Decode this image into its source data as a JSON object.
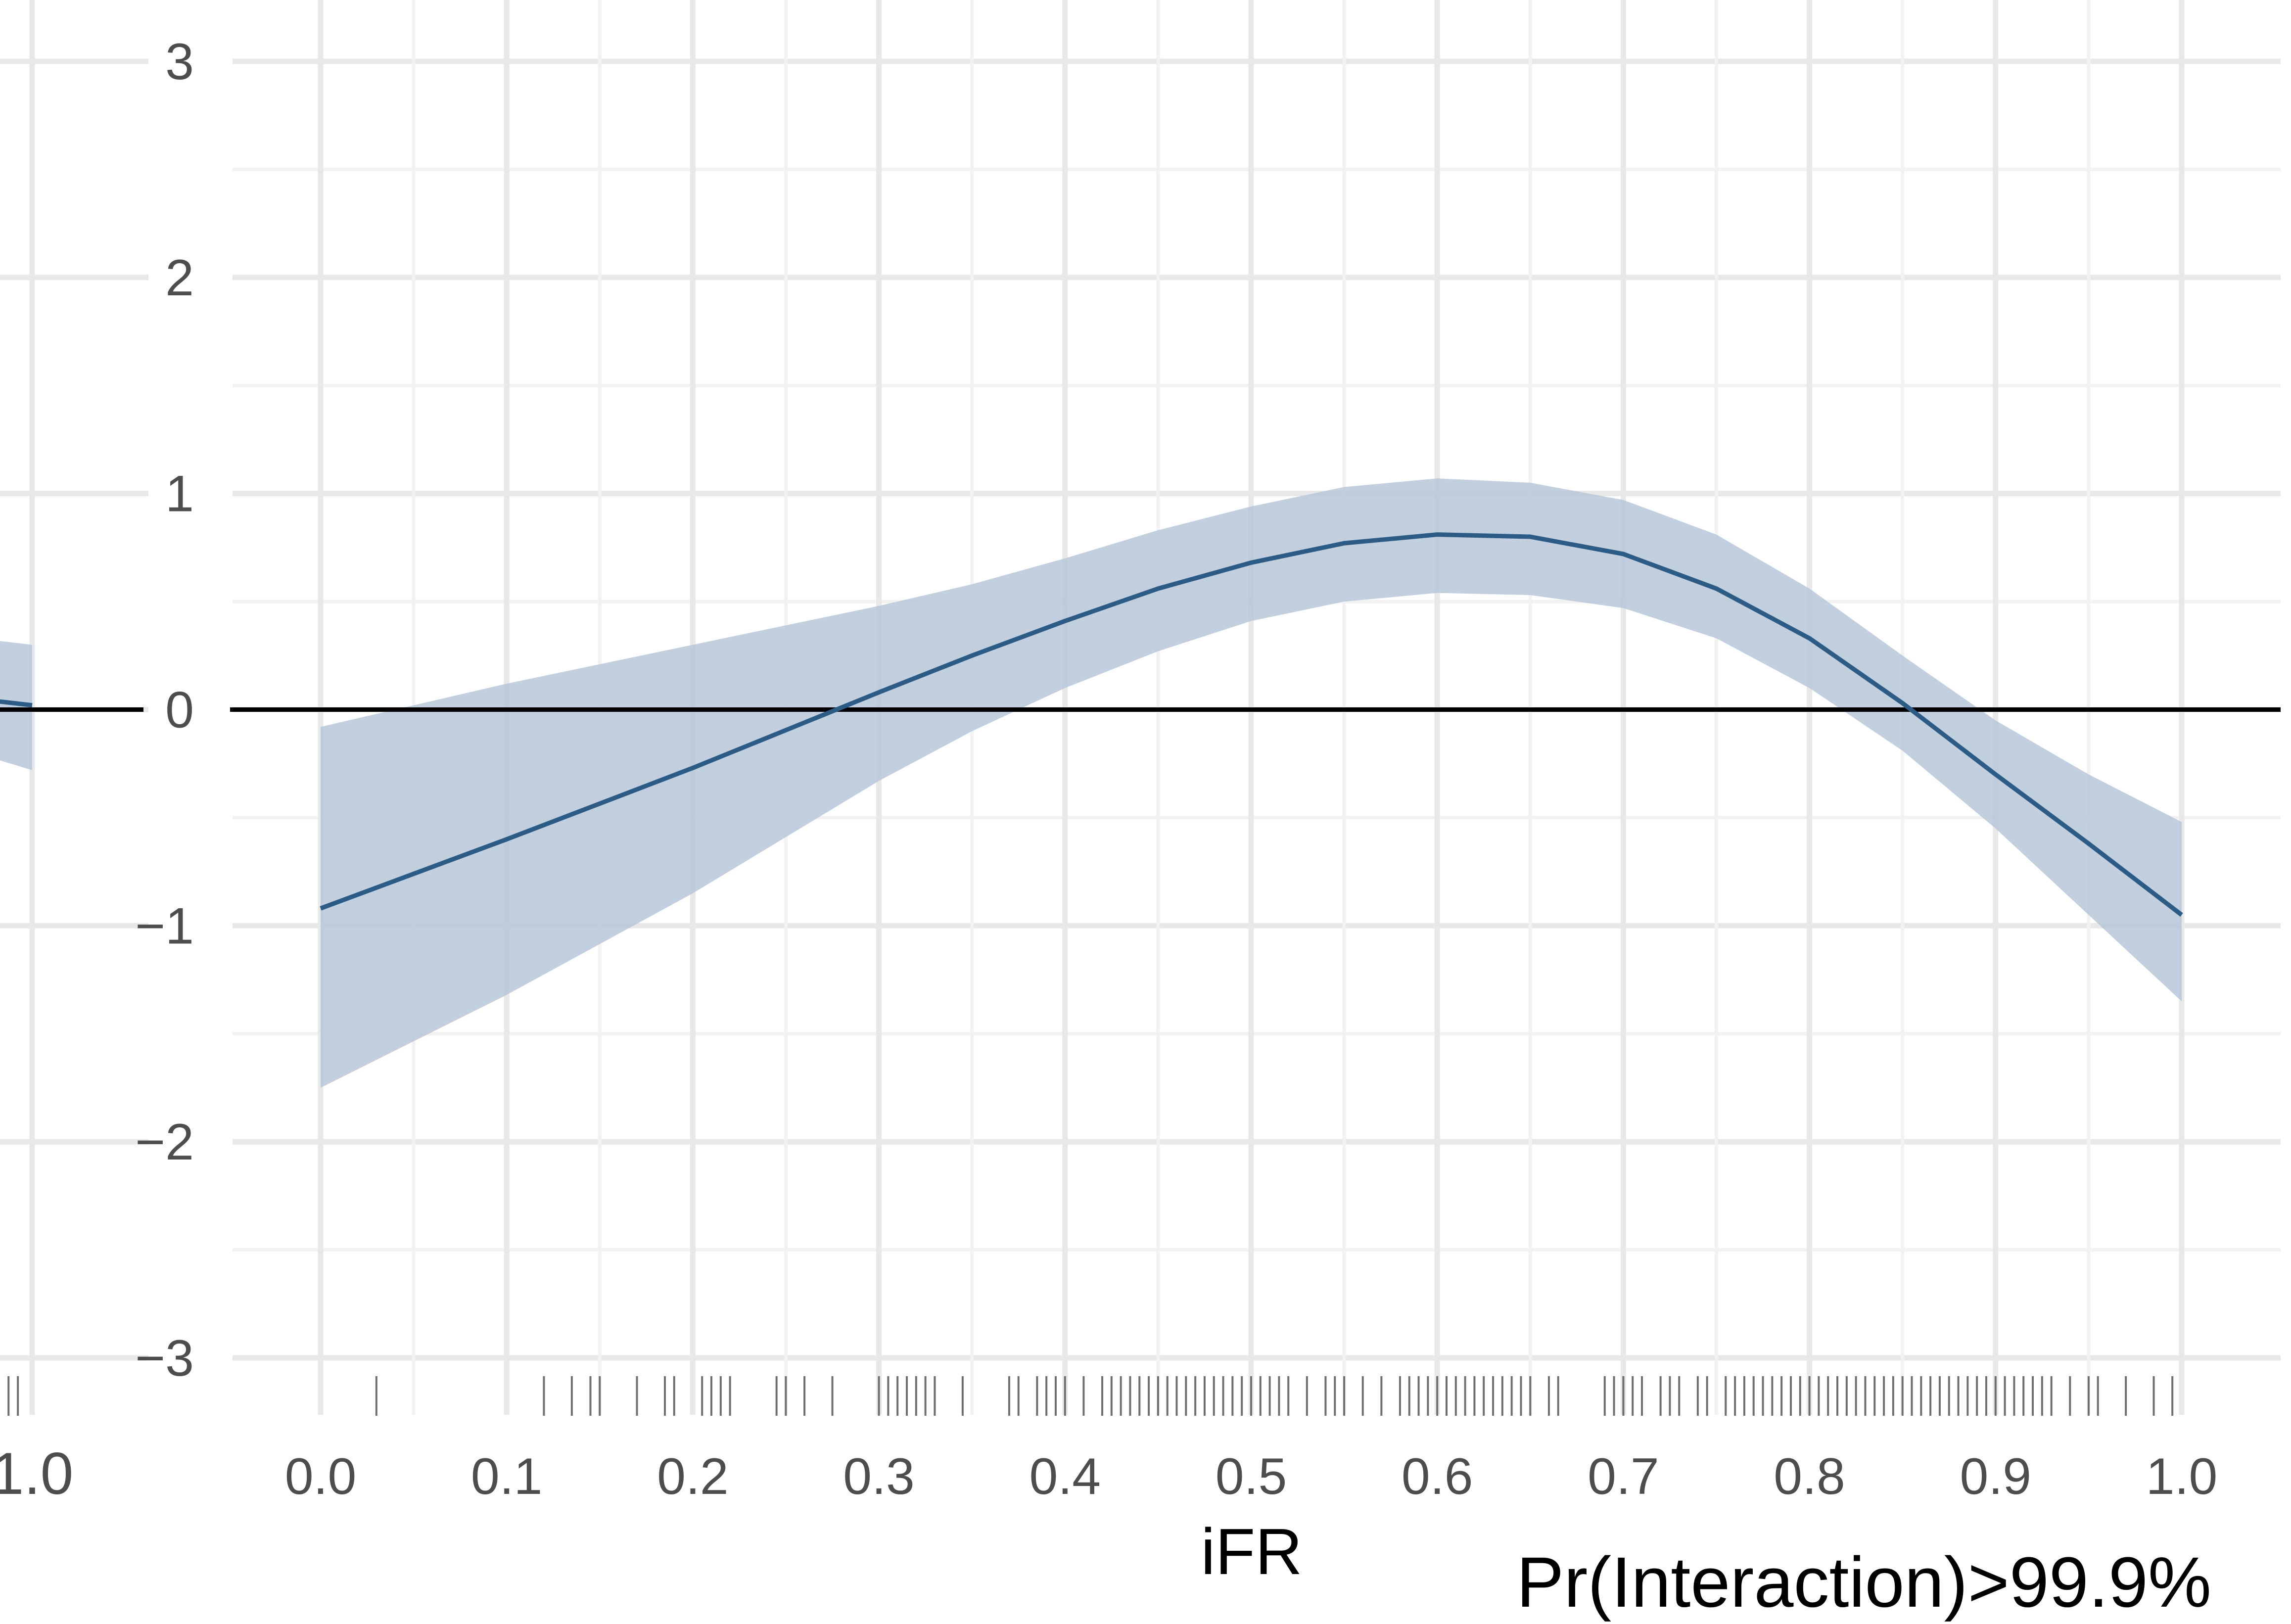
{
  "chart_data": [
    {
      "type": "line",
      "panel": "left-partial",
      "x_tick_labels": [
        "1.0"
      ],
      "series": [
        {
          "x": [
            0.95,
            0.97,
            1.0
          ],
          "y": [
            0.1,
            0.05,
            0.02
          ]
        }
      ],
      "band": {
        "x": [
          0.95,
          1.0
        ],
        "upper": [
          0.35,
          0.3
        ],
        "lower": [
          -0.15,
          -0.28
        ]
      }
    },
    {
      "type": "line",
      "panel": "main",
      "xlabel": "iFR",
      "annotation": "Pr(Interaction)>99.9%",
      "xlim": [
        0.0,
        1.0
      ],
      "ylim": [
        -3,
        3
      ],
      "x_ticks": [
        0.0,
        0.1,
        0.2,
        0.3,
        0.4,
        0.5,
        0.6,
        0.7,
        0.8,
        0.9,
        1.0
      ],
      "x_tick_labels": [
        "0.0",
        "0.1",
        "0.2",
        "0.3",
        "0.4",
        "0.5",
        "0.6",
        "0.7",
        "0.8",
        "0.9",
        "1.0"
      ],
      "y_ticks": [
        -3,
        -2,
        -1,
        0,
        1,
        2,
        3
      ],
      "y_tick_labels": [
        "−3",
        "−2",
        "−1",
        "0",
        "1",
        "2",
        "3"
      ],
      "reference_line_y": 0,
      "grid": true,
      "colors": {
        "line": "#2c5b85",
        "band": "#b3c5d8",
        "grid": "#e8e8e8",
        "reference": "#000000"
      },
      "series": [
        {
          "x": [
            0.0,
            0.1,
            0.2,
            0.3,
            0.35,
            0.4,
            0.45,
            0.5,
            0.55,
            0.6,
            0.65,
            0.7,
            0.75,
            0.8,
            0.85,
            0.9,
            0.95,
            1.0
          ],
          "y": [
            -0.92,
            -0.6,
            -0.27,
            0.08,
            0.25,
            0.41,
            0.56,
            0.68,
            0.77,
            0.81,
            0.8,
            0.72,
            0.56,
            0.33,
            0.03,
            -0.3,
            -0.62,
            -0.95
          ]
        }
      ],
      "band": {
        "x": [
          0.0,
          0.1,
          0.2,
          0.3,
          0.35,
          0.4,
          0.45,
          0.5,
          0.55,
          0.6,
          0.65,
          0.7,
          0.75,
          0.8,
          0.85,
          0.9,
          0.95,
          1.0
        ],
        "upper": [
          -0.08,
          0.12,
          0.3,
          0.48,
          0.58,
          0.7,
          0.83,
          0.94,
          1.03,
          1.07,
          1.05,
          0.97,
          0.81,
          0.56,
          0.25,
          -0.05,
          -0.3,
          -0.52
        ],
        "lower": [
          -1.75,
          -1.32,
          -0.85,
          -0.33,
          -0.1,
          0.1,
          0.27,
          0.41,
          0.5,
          0.54,
          0.53,
          0.47,
          0.33,
          0.1,
          -0.19,
          -0.55,
          -0.95,
          -1.35
        ]
      },
      "rug_x": [
        0.03,
        0.12,
        0.135,
        0.145,
        0.15,
        0.17,
        0.185,
        0.19,
        0.205,
        0.21,
        0.215,
        0.22,
        0.245,
        0.25,
        0.26,
        0.275,
        0.3,
        0.305,
        0.31,
        0.315,
        0.32,
        0.325,
        0.33,
        0.345,
        0.37,
        0.375,
        0.385,
        0.39,
        0.395,
        0.4,
        0.41,
        0.42,
        0.425,
        0.43,
        0.435,
        0.44,
        0.445,
        0.45,
        0.455,
        0.46,
        0.465,
        0.47,
        0.475,
        0.48,
        0.485,
        0.49,
        0.495,
        0.5,
        0.505,
        0.51,
        0.515,
        0.52,
        0.53,
        0.54,
        0.545,
        0.55,
        0.56,
        0.57,
        0.58,
        0.585,
        0.59,
        0.595,
        0.6,
        0.605,
        0.61,
        0.615,
        0.62,
        0.625,
        0.63,
        0.635,
        0.64,
        0.645,
        0.65,
        0.66,
        0.665,
        0.69,
        0.695,
        0.7,
        0.705,
        0.71,
        0.72,
        0.725,
        0.73,
        0.74,
        0.745,
        0.755,
        0.76,
        0.765,
        0.77,
        0.775,
        0.78,
        0.785,
        0.79,
        0.795,
        0.8,
        0.805,
        0.81,
        0.815,
        0.82,
        0.825,
        0.83,
        0.835,
        0.84,
        0.845,
        0.85,
        0.855,
        0.86,
        0.865,
        0.87,
        0.875,
        0.88,
        0.885,
        0.89,
        0.895,
        0.9,
        0.905,
        0.91,
        0.915,
        0.92,
        0.925,
        0.93,
        0.94,
        0.95,
        0.955,
        0.97,
        0.985,
        0.995
      ]
    }
  ]
}
